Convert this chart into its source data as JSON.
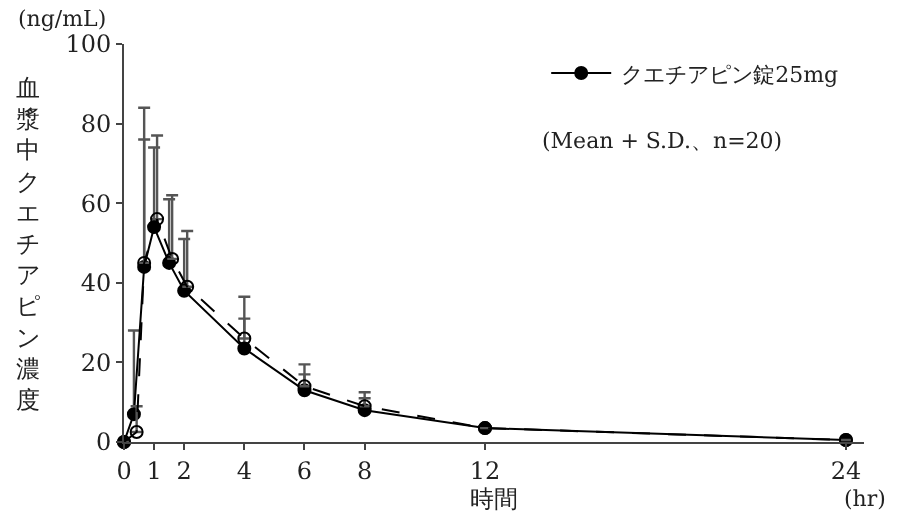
{
  "chart_data": {
    "type": "line",
    "xlabel": "時間",
    "ylabel": "血漿中クエチアピン濃度",
    "annotations": [
      "(ng/mL)",
      "(hr)",
      "(Mean + S.D.、n=20)"
    ],
    "xlim": [
      0,
      24.6
    ],
    "xticks": [
      0,
      1,
      2,
      4,
      6,
      8,
      12,
      24
    ],
    "ylim": [
      0,
      100
    ],
    "yticks": [
      0,
      20,
      40,
      60,
      80,
      100
    ],
    "legend": "top right",
    "marker": "circle",
    "series": [
      {
        "name": "クエチアピン錠25mg",
        "color": "#000000",
        "line_style": "solid",
        "x": [
          0,
          0.33,
          0.67,
          1,
          1.5,
          2,
          4,
          6,
          8,
          12,
          24
        ],
        "values": [
          0,
          7,
          44,
          54,
          45,
          38,
          23.5,
          13,
          8,
          3.5,
          0.5
        ],
        "errors": [
          null,
          [
            7,
            28
          ],
          [
            44,
            76
          ],
          [
            54,
            74
          ],
          [
            45,
            61
          ],
          [
            38,
            51
          ],
          [
            23.5,
            31
          ],
          [
            13,
            17
          ],
          [
            8,
            11
          ],
          null,
          null
        ]
      },
      {
        "color": "#000000",
        "marker": "circle-open",
        "line_style": "dashed",
        "x": [
          0,
          0.42,
          0.67,
          1.1,
          1.6,
          2.1,
          4,
          6,
          8,
          12,
          24
        ],
        "values": [
          0,
          2.5,
          45,
          56,
          46,
          39,
          26,
          14,
          9,
          3.5,
          0.5
        ],
        "errors": [
          null,
          [
            2.5,
            9
          ],
          [
            45,
            84
          ],
          [
            56,
            77
          ],
          [
            46,
            62
          ],
          [
            39,
            53
          ],
          [
            26,
            36.5
          ],
          [
            14,
            19.5
          ],
          [
            9,
            12.5
          ],
          null,
          null
        ]
      }
    ]
  }
}
